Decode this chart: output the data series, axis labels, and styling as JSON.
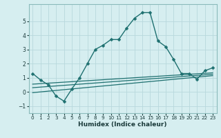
{
  "xlabel": "Humidex (Indice chaleur)",
  "background_color": "#d6eef0",
  "grid_color": "#b8d8dc",
  "line_color": "#1e7070",
  "xlim": [
    -0.5,
    23.5
  ],
  "ylim": [
    -1.5,
    6.2
  ],
  "yticks": [
    -1,
    0,
    1,
    2,
    3,
    4,
    5
  ],
  "xticks": [
    0,
    1,
    2,
    3,
    4,
    5,
    6,
    7,
    8,
    9,
    10,
    11,
    12,
    13,
    14,
    15,
    16,
    17,
    18,
    19,
    20,
    21,
    22,
    23
  ],
  "series": [
    {
      "x": [
        0,
        1,
        2,
        3,
        4,
        5,
        6,
        7,
        8,
        9,
        10,
        11,
        12,
        13,
        14,
        15,
        16,
        17,
        18,
        19,
        20,
        21,
        22,
        23
      ],
      "y": [
        1.3,
        0.85,
        0.5,
        -0.3,
        -0.65,
        0.2,
        1.0,
        2.0,
        3.0,
        3.3,
        3.7,
        3.7,
        4.5,
        5.2,
        5.6,
        5.6,
        3.6,
        3.2,
        2.3,
        1.3,
        1.3,
        0.9,
        1.5,
        1.7
      ],
      "marker": "D",
      "markersize": 2.5,
      "linewidth": 1.0,
      "with_marker": true
    },
    {
      "x": [
        0,
        23
      ],
      "y": [
        0.55,
        1.35
      ],
      "marker": null,
      "markersize": 0,
      "linewidth": 0.9,
      "with_marker": false
    },
    {
      "x": [
        0,
        23
      ],
      "y": [
        0.3,
        1.25
      ],
      "marker": null,
      "markersize": 0,
      "linewidth": 0.9,
      "with_marker": false
    },
    {
      "x": [
        0,
        23
      ],
      "y": [
        -0.05,
        1.15
      ],
      "marker": null,
      "markersize": 0,
      "linewidth": 0.9,
      "with_marker": false
    }
  ]
}
